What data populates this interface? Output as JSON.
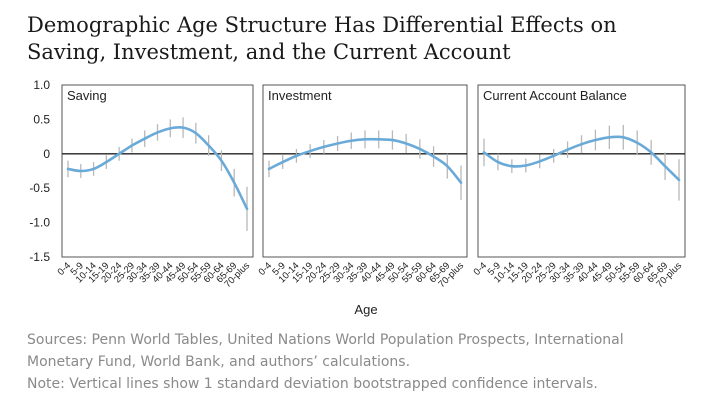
{
  "title": "Demographic Age Structure Has Differential Effects on Saving, Investment, and the Current Account",
  "footer": {
    "sources_line1": "Sources: Penn World Tables, United Nations World Population Prospects, International",
    "sources_line2": "Monetary Fund, World Bank, and authors’ calculations.",
    "note": "Note: Vertical lines show 1 standard deviation bootstrapped confidence intervals."
  },
  "colors": {
    "line": "#6aaad8",
    "errorbar": "#b8b8b8",
    "zero": "#222222",
    "frame": "#555555"
  },
  "chart_data": {
    "type": "line",
    "xlabel": "Age",
    "ylim": [
      -1.5,
      1.0
    ],
    "yticks": [
      "1.0",
      "0.5",
      "0",
      "-0.5",
      "-1.0",
      "-1.5"
    ],
    "categories": [
      "0-4",
      "5-9",
      "10-14",
      "15-19",
      "20-24",
      "25-29",
      "30-34",
      "35-39",
      "40-44",
      "45-49",
      "50-54",
      "55-59",
      "60-64",
      "65-69",
      "70-plus"
    ],
    "series": [
      {
        "name": "Saving",
        "values": [
          -0.22,
          -0.25,
          -0.22,
          -0.12,
          0.0,
          0.12,
          0.22,
          0.31,
          0.37,
          0.38,
          0.3,
          0.12,
          -0.1,
          -0.42,
          -0.8
        ],
        "err": [
          0.12,
          0.1,
          0.1,
          0.1,
          0.1,
          0.1,
          0.12,
          0.12,
          0.13,
          0.15,
          0.15,
          0.15,
          0.15,
          0.2,
          0.32
        ]
      },
      {
        "name": "Investment",
        "values": [
          -0.22,
          -0.12,
          -0.03,
          0.04,
          0.1,
          0.15,
          0.19,
          0.21,
          0.21,
          0.2,
          0.15,
          0.07,
          -0.04,
          -0.18,
          -0.42
        ],
        "err": [
          0.12,
          0.1,
          0.1,
          0.1,
          0.1,
          0.11,
          0.12,
          0.13,
          0.13,
          0.14,
          0.14,
          0.14,
          0.15,
          0.18,
          0.25
        ]
      },
      {
        "name": "Current Account Balance",
        "values": [
          0.02,
          -0.12,
          -0.18,
          -0.17,
          -0.11,
          -0.03,
          0.06,
          0.14,
          0.2,
          0.24,
          0.24,
          0.16,
          0.02,
          -0.18,
          -0.38
        ],
        "err": [
          0.2,
          0.12,
          0.1,
          0.1,
          0.1,
          0.1,
          0.12,
          0.13,
          0.15,
          0.17,
          0.18,
          0.18,
          0.18,
          0.2,
          0.3
        ]
      }
    ]
  }
}
